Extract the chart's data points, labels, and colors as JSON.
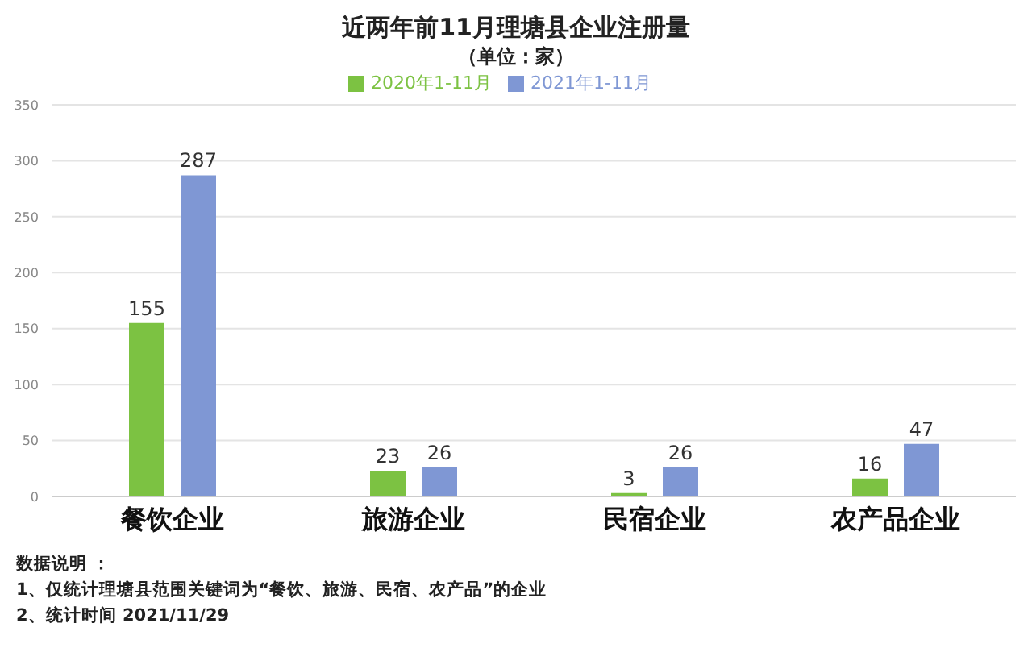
{
  "chart_data": {
    "type": "bar",
    "title": "近两年前11月理塘县企业注册量",
    "subtitle": "（单位：家）",
    "categories": [
      "餐饮企业",
      "旅游企业",
      "民宿企业",
      "农产品企业"
    ],
    "series": [
      {
        "name": "2020年1-11月",
        "color": "#7cc242",
        "values": [
          155,
          23,
          3,
          16
        ]
      },
      {
        "name": "2021年1-11月",
        "color": "#7f97d4",
        "values": [
          287,
          26,
          26,
          47
        ]
      }
    ],
    "ylim": [
      0,
      350
    ],
    "yticks": [
      0,
      50,
      100,
      150,
      200,
      250,
      300,
      350
    ],
    "grid": "y",
    "legend": "top",
    "data_labels": true,
    "annotations": [
      "数据说明 ：",
      "1、仅统计理塘县范围关键词为“餐饮、旅游、民宿、农产品”的企业",
      "2、统计时间  2021/11/29"
    ]
  }
}
